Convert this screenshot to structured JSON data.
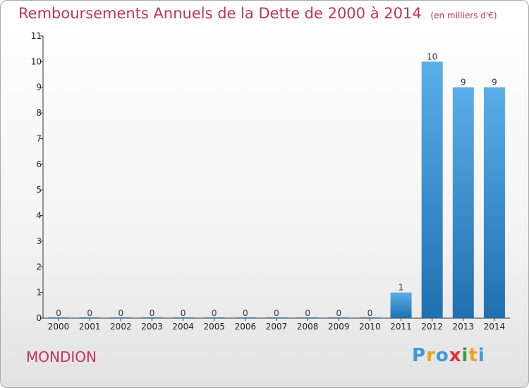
{
  "colors": {
    "accent": "#c0335a",
    "bar_top": "#5aaee8",
    "bar_bottom": "#1f70b0"
  },
  "chart_data": {
    "type": "bar",
    "title": "Remboursements Annuels de la Dette de 2000 à 2014",
    "unit_label": "(en milliers d'€)",
    "categories": [
      "2000",
      "2001",
      "2002",
      "2003",
      "2004",
      "2005",
      "2006",
      "2007",
      "2008",
      "2009",
      "2010",
      "2011",
      "2012",
      "2013",
      "2014"
    ],
    "values": [
      0,
      0,
      0,
      0,
      0,
      0,
      0,
      0,
      0,
      0,
      0,
      1,
      10,
      9,
      9
    ],
    "y_ticks": [
      "0",
      "1",
      "2",
      "3",
      "4",
      "5",
      "6",
      "7",
      "8",
      "9",
      "10",
      "11"
    ],
    "ylim": [
      0,
      11
    ],
    "xlabel": "",
    "ylabel": "",
    "grid": false,
    "legend": "none"
  },
  "footer": {
    "place": "MONDION",
    "brand_letters": [
      {
        "ch": "P",
        "color": "#3a9ad9"
      },
      {
        "ch": "r",
        "color": "#f0a020"
      },
      {
        "ch": "o",
        "color": "#3a9ad9"
      },
      {
        "ch": "x",
        "color": "#e03030"
      },
      {
        "ch": "i",
        "color": "#2f9f3f"
      },
      {
        "ch": "t",
        "color": "#f0a020"
      },
      {
        "ch": "i",
        "color": "#3a9ad9"
      }
    ]
  }
}
